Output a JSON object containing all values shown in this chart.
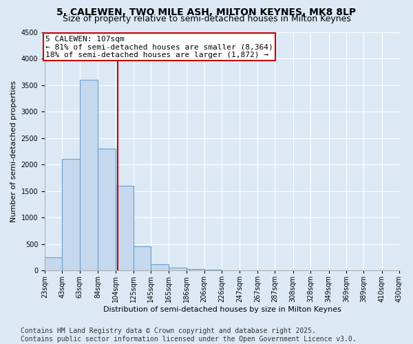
{
  "title": "5, CALEWEN, TWO MILE ASH, MILTON KEYNES, MK8 8LP",
  "subtitle": "Size of property relative to semi-detached houses in Milton Keynes",
  "xlabel": "Distribution of semi-detached houses by size in Milton Keynes",
  "ylabel": "Number of semi-detached properties",
  "annotation_title": "5 CALEWEN: 107sqm",
  "annotation_line1": "← 81% of semi-detached houses are smaller (8,364)",
  "annotation_line2": "18% of semi-detached houses are larger (1,872) →",
  "property_size": 107,
  "bins": [
    23,
    43,
    63,
    84,
    104,
    125,
    145,
    165,
    186,
    206,
    226,
    247,
    267,
    287,
    308,
    328,
    349,
    369,
    389,
    410,
    430
  ],
  "bin_labels": [
    "23sqm",
    "43sqm",
    "63sqm",
    "84sqm",
    "104sqm",
    "125sqm",
    "145sqm",
    "165sqm",
    "186sqm",
    "206sqm",
    "226sqm",
    "247sqm",
    "267sqm",
    "287sqm",
    "308sqm",
    "328sqm",
    "349sqm",
    "369sqm",
    "389sqm",
    "410sqm",
    "430sqm"
  ],
  "values": [
    250,
    2100,
    3600,
    2300,
    1600,
    450,
    120,
    50,
    30,
    10,
    5,
    2,
    1,
    0,
    0,
    0,
    0,
    0,
    0,
    0
  ],
  "bar_color": "#c5d8ee",
  "bar_edge_color": "#6aa0cc",
  "vline_color": "#cc0000",
  "annotation_box_edge_color": "#cc0000",
  "background_color": "#dce9f5",
  "plot_bg_color": "#dce9f5",
  "grid_color": "#ffffff",
  "ylim": [
    0,
    4500
  ],
  "yticks": [
    0,
    500,
    1000,
    1500,
    2000,
    2500,
    3000,
    3500,
    4000,
    4500
  ],
  "footer": "Contains HM Land Registry data © Crown copyright and database right 2025.\nContains public sector information licensed under the Open Government Licence v3.0.",
  "title_fontsize": 10,
  "subtitle_fontsize": 9,
  "label_fontsize": 8,
  "tick_fontsize": 7,
  "annotation_fontsize": 8,
  "footer_fontsize": 7
}
